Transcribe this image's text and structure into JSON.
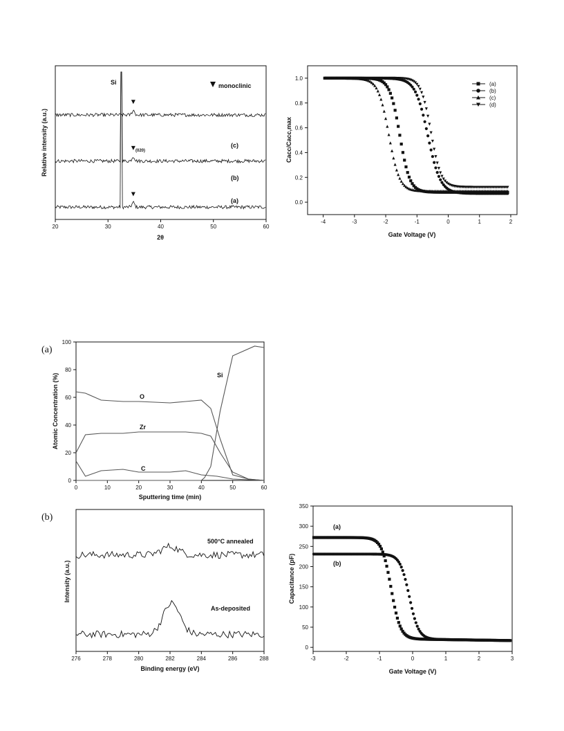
{
  "panel_labels": {
    "a": "(a)",
    "b": "(b)"
  },
  "chart_data": [
    {
      "id": "xrd",
      "type": "line",
      "xlabel": "2θ",
      "ylabel": "Relative intensity (a.u.)",
      "xlim": [
        20,
        60
      ],
      "x_ticks": [
        "20",
        "30",
        "40",
        "50",
        "60"
      ],
      "annotations": {
        "si": "Si",
        "legend": "monoclinic",
        "peak": "(020)"
      },
      "series": [
        {
          "name": "(a)",
          "baseline": 0.08,
          "si_peak_x": 32.5,
          "mono_peak_x": 34.8
        },
        {
          "name": "(b)",
          "baseline": 0.38,
          "si_peak_x": 32.5,
          "mono_peak_x": 34.8
        },
        {
          "name": "(c)",
          "baseline": 0.68,
          "mono_peak_x": 34.8
        }
      ]
    },
    {
      "id": "cv-norm",
      "type": "scatter",
      "xlabel": "Gate Voltage (V)",
      "ylabel": "Cacc/Cacc,max",
      "xlim": [
        -4.5,
        2.2
      ],
      "ylim": [
        -0.1,
        1.1
      ],
      "x_ticks": [
        "-4",
        "-3",
        "-2",
        "-1",
        "0",
        "1",
        "2"
      ],
      "y_ticks": [
        "0.0",
        "0.2",
        "0.4",
        "0.6",
        "0.8",
        "1.0"
      ],
      "series": [
        {
          "name": "(a)",
          "marker": "square",
          "v_mid": -1.55,
          "width": 0.16,
          "low": 0.08
        },
        {
          "name": "(b)",
          "marker": "circle",
          "v_mid": -0.65,
          "width": 0.2,
          "low": 0.07
        },
        {
          "name": "(c)",
          "marker": "triangle-up",
          "v_mid": -1.9,
          "width": 0.17,
          "low": 0.09
        },
        {
          "name": "(d)",
          "marker": "triangle-down",
          "v_mid": -0.55,
          "width": 0.16,
          "low": 0.12
        }
      ]
    },
    {
      "id": "aes",
      "type": "line",
      "xlabel": "Sputtering time (min)",
      "ylabel": "Atomic Concentration (%)",
      "xlim": [
        0,
        60
      ],
      "ylim": [
        0,
        100
      ],
      "x_ticks": [
        "0",
        "10",
        "20",
        "30",
        "40",
        "50",
        "60"
      ],
      "y_ticks": [
        "0",
        "20",
        "40",
        "60",
        "80",
        "100"
      ],
      "series": [
        {
          "name": "O",
          "x": [
            0,
            3,
            8,
            15,
            20,
            30,
            35,
            40,
            43,
            46,
            50,
            55,
            60
          ],
          "y": [
            64,
            63,
            58,
            57,
            57,
            56,
            57,
            58,
            52,
            30,
            4,
            1,
            0
          ]
        },
        {
          "name": "Zr",
          "x": [
            0,
            3,
            8,
            15,
            20,
            30,
            35,
            40,
            43,
            46,
            50,
            55,
            60
          ],
          "y": [
            20,
            33,
            34,
            34,
            35,
            35,
            35,
            34,
            32,
            20,
            6,
            1,
            0
          ]
        },
        {
          "name": "C",
          "x": [
            0,
            3,
            8,
            15,
            20,
            30,
            35,
            40,
            45,
            50,
            60
          ],
          "y": [
            14,
            3,
            7,
            8,
            6,
            6,
            7,
            4,
            3,
            1,
            0
          ]
        },
        {
          "name": "Si",
          "x": [
            0,
            40,
            41,
            43,
            46,
            50,
            57,
            60
          ],
          "y": [
            0,
            0,
            2,
            10,
            50,
            90,
            97,
            96
          ]
        }
      ]
    },
    {
      "id": "xps",
      "type": "line",
      "xlabel": "Binding energy (eV)",
      "ylabel": "Intensity (a.u.)",
      "xlim": [
        276,
        288
      ],
      "x_ticks": [
        "276",
        "278",
        "280",
        "282",
        "284",
        "286",
        "288"
      ],
      "series": [
        {
          "name": "500°C annealed",
          "offset": 0.68,
          "peak_x": 282.0,
          "peak_h": 0.06
        },
        {
          "name": "As-deposited",
          "offset": 0.12,
          "peak_x": 282.1,
          "peak_h": 0.22
        }
      ]
    },
    {
      "id": "cv-abs",
      "type": "scatter",
      "xlabel": "Gate Voltage (V)",
      "ylabel": "Capacitance (pF)",
      "xlim": [
        -3,
        3
      ],
      "ylim": [
        -10,
        350
      ],
      "x_ticks": [
        "-3",
        "-2",
        "-1",
        "0",
        "1",
        "2",
        "3"
      ],
      "y_ticks": [
        "0",
        "50",
        "100",
        "150",
        "200",
        "250",
        "300",
        "350"
      ],
      "series": [
        {
          "name": "(a)",
          "marker": "square",
          "high": 272,
          "v_mid": -0.65,
          "width": 0.14
        },
        {
          "name": "(b)",
          "marker": "circle",
          "high": 231,
          "v_mid": -0.1,
          "width": 0.14
        }
      ]
    }
  ]
}
